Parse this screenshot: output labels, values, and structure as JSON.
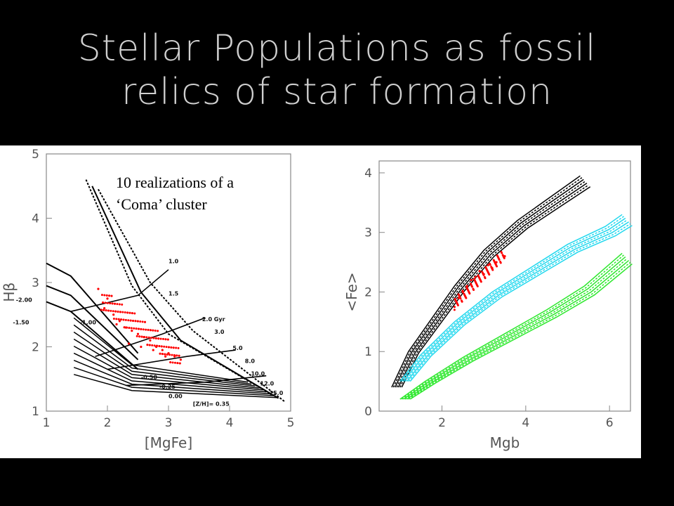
{
  "slide": {
    "title_line1": "Stellar Populations as fossil",
    "title_line2": "relics of star formation",
    "caption_line1": "10 realizations of a",
    "caption_line2": "‘Coma’ cluster"
  },
  "colors": {
    "background": "#000000",
    "title": "#cfcfcf",
    "models": "#000000",
    "coma_points": "#ff0000",
    "cyan_models": "#22d8ee",
    "green_models": "#2ee82e"
  },
  "chart_data": [
    {
      "type": "line",
      "xlabel": "[MgFe]",
      "ylabel": "Hβ",
      "xlim": [
        1,
        5
      ],
      "ylim": [
        1,
        5
      ],
      "xticks": [
        1,
        2,
        3,
        4,
        5
      ],
      "yticks": [
        1,
        2,
        3,
        4,
        5
      ],
      "grid": false,
      "labels": {
        "metallicity": [
          "-2.00",
          "-1.50",
          "-1.00",
          "-0.50",
          "-0.25",
          "0.00",
          "[Z/H]= 0.35"
        ],
        "age": [
          "1.0",
          "1.5",
          "2.0 Gyr",
          "3.0",
          "5.0",
          "8.0",
          "10.0",
          "12.0",
          "15.0"
        ]
      },
      "iso_metallicity_lines": [
        {
          "name": "-2.00",
          "x": [
            1.0,
            1.4,
            2.5
          ],
          "y": [
            3.3,
            3.1,
            1.9
          ]
        },
        {
          "name": "-1.50",
          "x": [
            1.0,
            1.4,
            2.5
          ],
          "y": [
            2.7,
            2.55,
            1.65
          ]
        },
        {
          "name": "-1.00",
          "x": [
            1.0,
            1.4,
            2.5
          ],
          "y": [
            2.95,
            2.8,
            1.8
          ]
        },
        {
          "name": "-0.50",
          "x": [
            1.65,
            2.4,
            3.0,
            4.7
          ],
          "y": [
            4.6,
            2.95,
            2.2,
            1.25
          ]
        },
        {
          "name": "-0.25",
          "x": [
            1.75,
            2.55,
            3.2,
            4.8
          ],
          "y": [
            4.5,
            2.85,
            2.1,
            1.2
          ]
        },
        {
          "name": "0.00",
          "x": [
            1.85,
            2.7,
            3.4,
            4.9
          ],
          "y": [
            4.45,
            3.0,
            2.25,
            1.15
          ]
        }
      ],
      "iso_age_lines": [
        {
          "name": "1.0",
          "x": [
            1.4,
            2.5,
            3.0
          ],
          "y": [
            2.55,
            2.8,
            3.2
          ]
        },
        {
          "name": "2.0 Gyr",
          "x": [
            1.8,
            2.9,
            3.6
          ],
          "y": [
            1.85,
            2.2,
            2.45
          ]
        },
        {
          "name": "5.0",
          "x": [
            2.0,
            3.3,
            4.1
          ],
          "y": [
            1.65,
            1.85,
            1.95
          ]
        },
        {
          "name": "12.0",
          "x": [
            2.3,
            3.6,
            4.6
          ],
          "y": [
            1.4,
            1.45,
            1.55
          ]
        }
      ],
      "coma_points": {
        "x": [
          1.85,
          2.0,
          2.1,
          2.2,
          2.3,
          2.4,
          2.5,
          2.6,
          2.7,
          2.8,
          2.9,
          3.0,
          3.1,
          3.2,
          1.95,
          2.15,
          2.35,
          2.55,
          2.75,
          2.95
        ],
        "y": [
          2.9,
          2.75,
          2.5,
          2.4,
          2.3,
          2.25,
          2.2,
          2.15,
          2.1,
          2.0,
          1.95,
          1.9,
          1.85,
          1.8,
          2.6,
          2.35,
          2.05,
          2.0,
          1.95,
          1.85
        ]
      }
    },
    {
      "type": "line",
      "xlabel": "Mgb",
      "ylabel": "<Fe>",
      "xlim": [
        0.5,
        6.5
      ],
      "ylim": [
        0,
        4.2
      ],
      "xticks": [
        2,
        4,
        6
      ],
      "yticks": [
        0,
        1,
        2,
        3,
        4
      ],
      "grid": false,
      "series": [
        {
          "x": [
            0.8,
            1.2,
            1.7,
            2.3,
            3.0,
            3.8,
            4.6,
            5.3
          ],
          "y": [
            0.4,
            1.0,
            1.5,
            2.1,
            2.7,
            3.2,
            3.6,
            3.95
          ]
        },
        {
          "x": [
            1.0,
            1.5,
            2.3,
            3.2,
            4.1,
            5.0,
            5.9,
            6.3
          ],
          "y": [
            0.5,
            0.95,
            1.5,
            2.0,
            2.4,
            2.8,
            3.1,
            3.3
          ]
        },
        {
          "x": [
            1.0,
            1.6,
            2.5,
            3.5,
            4.5,
            5.4,
            6.3
          ],
          "y": [
            0.2,
            0.5,
            0.9,
            1.3,
            1.7,
            2.1,
            2.65
          ]
        }
      ],
      "coma_points": {
        "x": [
          2.3,
          2.5,
          2.7,
          2.9,
          3.1,
          3.3,
          3.5,
          2.4,
          2.6,
          2.8,
          3.0,
          3.2
        ],
        "y": [
          1.75,
          2.0,
          2.2,
          2.35,
          2.45,
          2.5,
          2.6,
          1.9,
          2.1,
          2.25,
          2.3,
          2.4
        ]
      }
    }
  ]
}
